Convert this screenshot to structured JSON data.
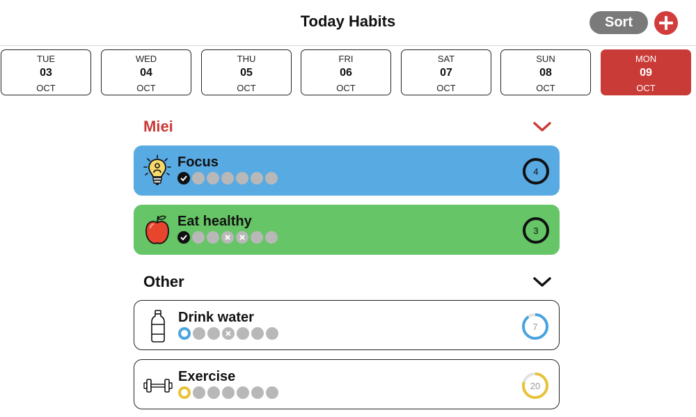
{
  "header": {
    "title": "Today Habits",
    "sort_label": "Sort",
    "add_icon": "plus-icon",
    "accent_color": "#d23c3c"
  },
  "dates": [
    {
      "dow": "TUE",
      "day": "03",
      "mon": "OCT",
      "selected": false
    },
    {
      "dow": "WED",
      "day": "04",
      "mon": "OCT",
      "selected": false
    },
    {
      "dow": "THU",
      "day": "05",
      "mon": "OCT",
      "selected": false
    },
    {
      "dow": "FRI",
      "day": "06",
      "mon": "OCT",
      "selected": false
    },
    {
      "dow": "SAT",
      "day": "07",
      "mon": "OCT",
      "selected": false
    },
    {
      "dow": "SUN",
      "day": "08",
      "mon": "OCT",
      "selected": false
    },
    {
      "dow": "MON",
      "day": "09",
      "mon": "OCT",
      "selected": true
    }
  ],
  "sections": [
    {
      "name": "Miei",
      "color": "#c93b37",
      "habits": [
        {
          "name": "Focus",
          "icon": "lightbulb-icon",
          "bg": "#58aae3",
          "count": "4",
          "progress": 0,
          "dots": [
            "check",
            "empty",
            "empty",
            "empty",
            "empty",
            "empty",
            "empty"
          ]
        },
        {
          "name": "Eat healthy",
          "icon": "apple-icon",
          "bg": "#66c566",
          "count": "3",
          "progress": 0,
          "dots": [
            "check",
            "empty",
            "empty",
            "x",
            "x",
            "empty",
            "empty"
          ]
        }
      ]
    },
    {
      "name": "Other",
      "color": "#111111",
      "habits": [
        {
          "name": "Drink water",
          "icon": "water-bottle-icon",
          "bg": "#ffffff",
          "count": "7",
          "progress": 0.9,
          "ring_color": "#4aa3df",
          "dots": [
            "ring-blue",
            "empty",
            "empty",
            "x",
            "empty",
            "empty",
            "empty"
          ]
        },
        {
          "name": "Exercise",
          "icon": "dumbbell-icon",
          "bg": "#ffffff",
          "count": "20",
          "progress": 0.8,
          "ring_color": "#e8c23a",
          "dots": [
            "ring-yellow",
            "empty",
            "empty",
            "empty",
            "empty",
            "empty",
            "empty"
          ]
        }
      ]
    }
  ]
}
